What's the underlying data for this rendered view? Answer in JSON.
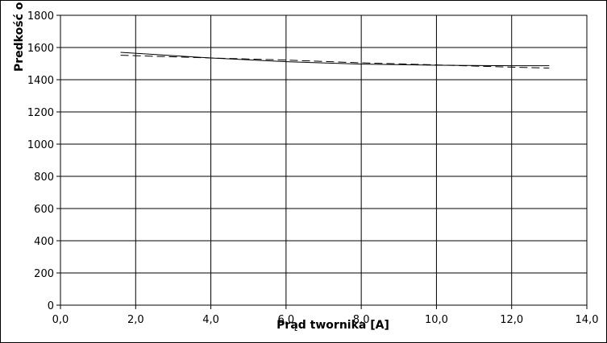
{
  "chart_data": {
    "type": "line",
    "title": "",
    "xlabel": "Prąd twornika [A]",
    "ylabel": "Predkość o",
    "xlim": [
      0,
      14
    ],
    "ylim": [
      0,
      1800
    ],
    "x_ticks": [
      "0,0",
      "2,0",
      "4,0",
      "6,0",
      "8,0",
      "10,0",
      "12,0",
      "14,0"
    ],
    "y_ticks": [
      "0",
      "200",
      "400",
      "600",
      "800",
      "1000",
      "1200",
      "1400",
      "1600",
      "1800"
    ],
    "grid": true,
    "legend": "none",
    "series": [
      {
        "style": "solid",
        "color": "#000000",
        "x": [
          1.6,
          4.0,
          6.0,
          8.0,
          10.0,
          12.0,
          13.0
        ],
        "y": [
          1570,
          1535,
          1512,
          1497,
          1490,
          1487,
          1487
        ]
      },
      {
        "style": "dashed",
        "color": "#000000",
        "x": [
          1.6,
          4.0,
          6.0,
          8.0,
          10.0,
          12.0,
          13.0
        ],
        "y": [
          1552,
          1535,
          1522,
          1505,
          1492,
          1478,
          1472
        ]
      }
    ]
  }
}
